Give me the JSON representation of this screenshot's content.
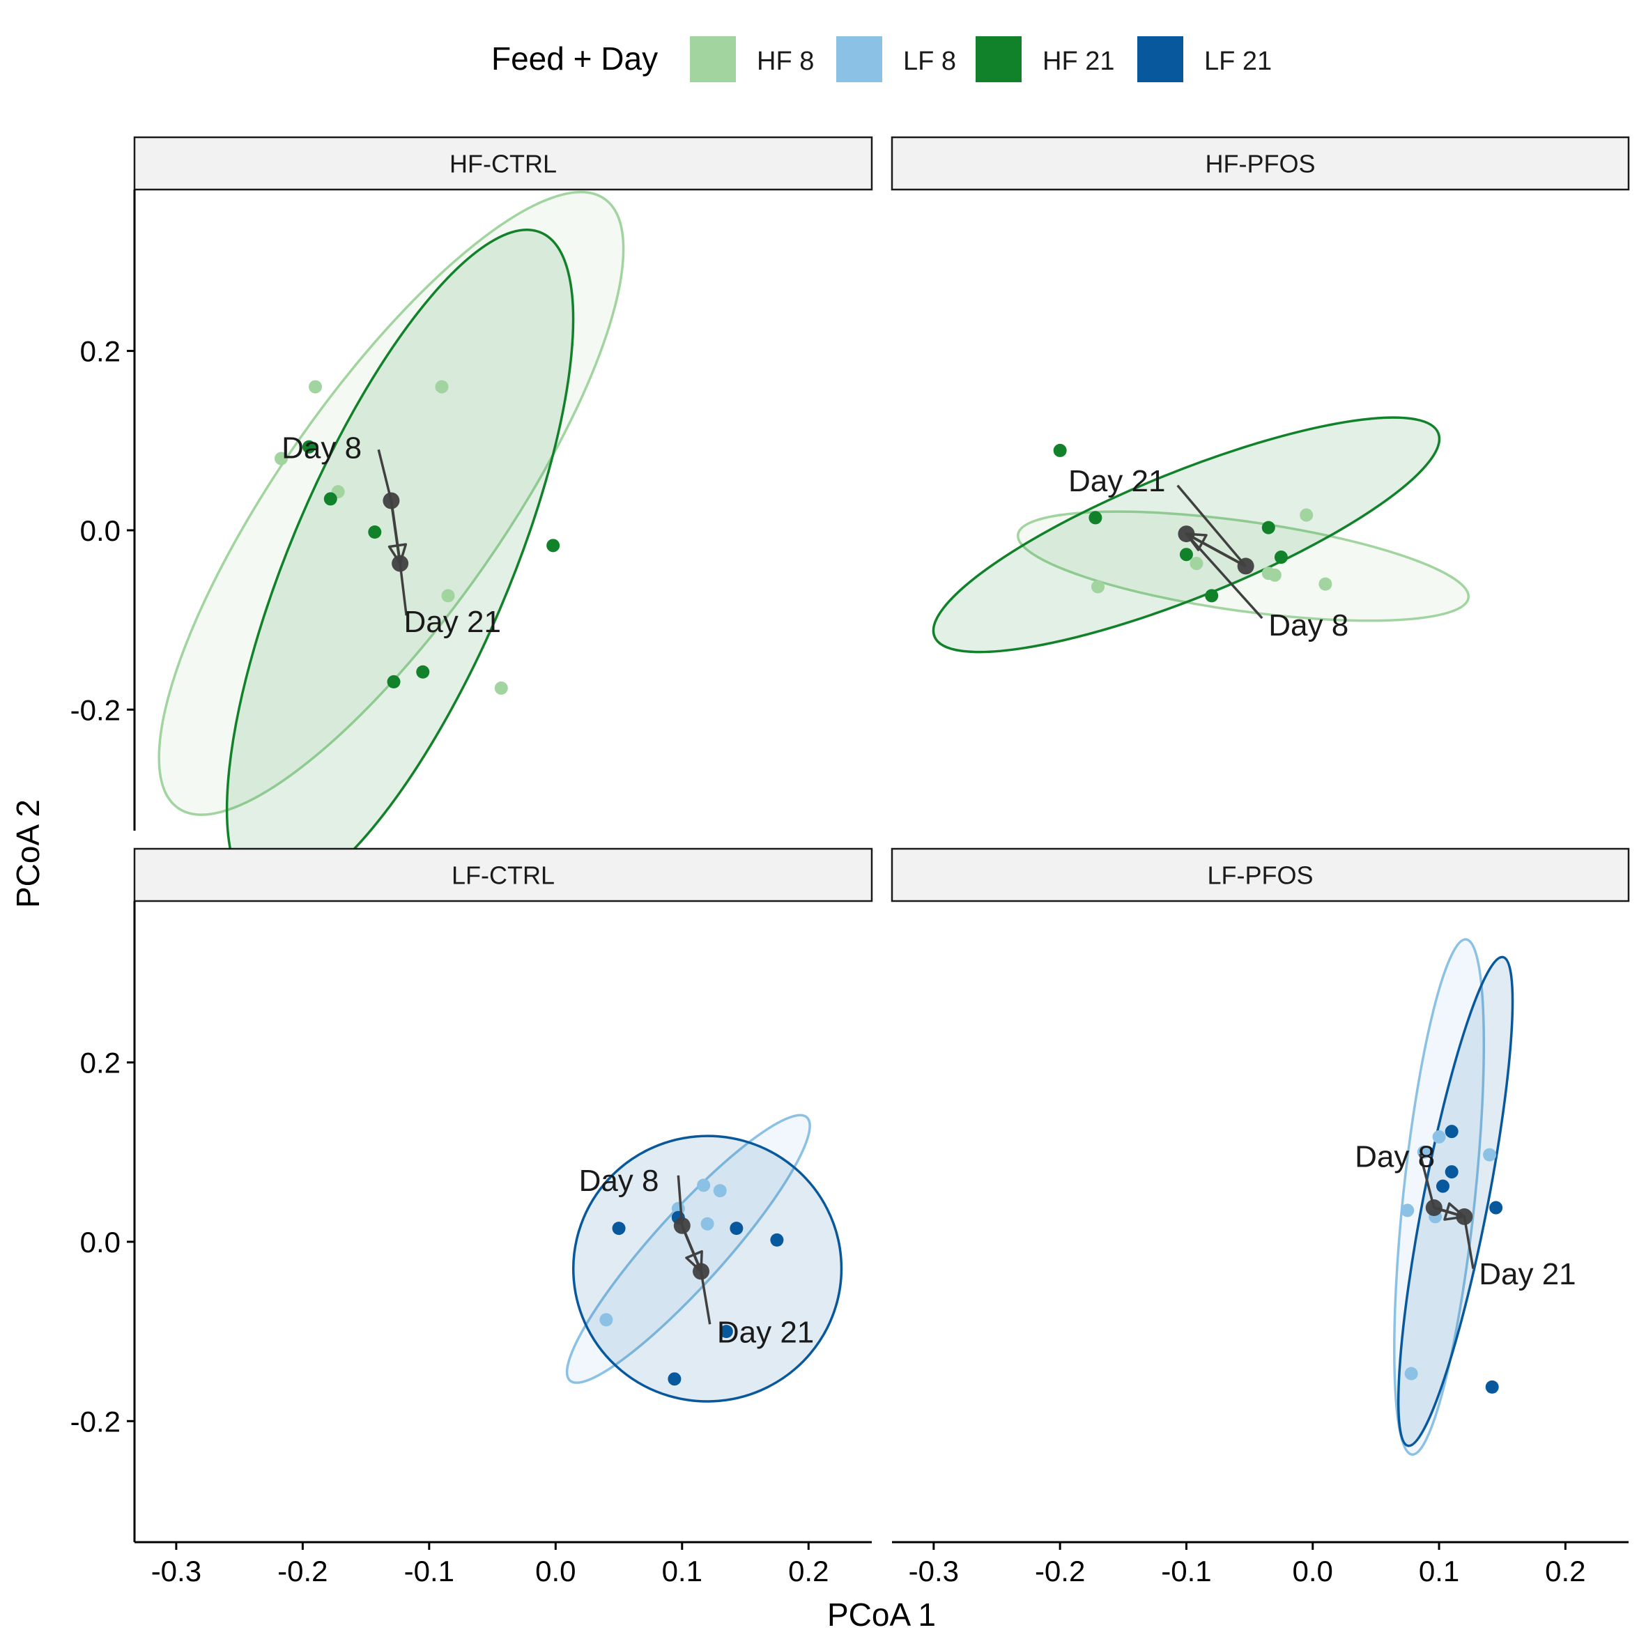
{
  "colors": {
    "HF 8": "#a1d49f",
    "LF 8": "#8bc1e4",
    "HF 21": "#11812a",
    "LF 21": "#08589d",
    "centroid": "#404040"
  },
  "chart_data": {
    "type": "scatter",
    "legend": {
      "title": "Feed + Day",
      "placement": "top",
      "items": [
        "HF 8",
        "LF 8",
        "HF 21",
        "LF 21"
      ]
    },
    "xlabel": "PCoA 1",
    "ylabel": "PCoA 2",
    "xlim": [
      -0.333,
      0.25
    ],
    "ylim": [
      -0.335,
      0.38
    ],
    "xticks": [
      -0.3,
      -0.2,
      -0.1,
      0.0,
      0.1,
      0.2
    ],
    "xtick_labels": [
      "-0.3",
      "-0.2",
      "-0.1",
      "0.0",
      "0.1",
      "0.2"
    ],
    "yticks": [
      -0.2,
      0.0,
      0.2
    ],
    "ytick_labels": [
      "-0.2",
      "0.0",
      "0.2"
    ],
    "grid": false,
    "panels": [
      {
        "title": "HF-CTRL",
        "groups": [
          {
            "name": "HF 8",
            "points": [
              [
                -0.19,
                0.16
              ],
              [
                -0.09,
                0.16
              ],
              [
                -0.217,
                0.08
              ],
              [
                -0.172,
                0.043
              ],
              [
                -0.085,
                -0.073
              ],
              [
                -0.043,
                -0.176
              ]
            ],
            "ellipse": {
              "cx": -0.13,
              "cy": 0.03,
              "rx": 0.294,
              "ry": 0.125,
              "angle_deg": -55
            }
          },
          {
            "name": "HF 21",
            "points": [
              [
                -0.195,
                0.093
              ],
              [
                -0.178,
                0.035
              ],
              [
                -0.143,
                -0.002
              ],
              [
                -0.002,
                -0.017
              ],
              [
                -0.105,
                -0.158
              ],
              [
                -0.128,
                -0.169
              ]
            ],
            "ellipse": {
              "cx": -0.123,
              "cy": -0.038,
              "rx": 0.285,
              "ry": 0.122,
              "angle_deg": -67
            }
          }
        ],
        "centroids": {
          "from": [
            -0.13,
            0.033
          ],
          "to": [
            -0.123,
            -0.037
          ]
        },
        "annotations": [
          {
            "text": "Day 8",
            "x": -0.185,
            "y": 0.093,
            "anchor": [
              -0.14,
              0.09
            ],
            "align": "middle"
          },
          {
            "text": "Day 21",
            "x": -0.12,
            "y": -0.101,
            "anchor": [
              -0.118,
              -0.095
            ],
            "align": "start"
          }
        ]
      },
      {
        "title": "HF-PFOS",
        "groups": [
          {
            "name": "HF 8",
            "points": [
              [
                -0.17,
                -0.063
              ],
              [
                -0.092,
                -0.037
              ],
              [
                -0.035,
                -0.048
              ],
              [
                -0.03,
                -0.05
              ],
              [
                -0.005,
                0.017
              ],
              [
                0.01,
                -0.06
              ]
            ],
            "ellipse": {
              "cx": -0.055,
              "cy": -0.04,
              "rx": 0.18,
              "ry": 0.05,
              "angle_deg": 8
            }
          },
          {
            "name": "HF 21",
            "points": [
              [
                -0.2,
                0.089
              ],
              [
                -0.172,
                0.014
              ],
              [
                -0.035,
                0.003
              ],
              [
                -0.1,
                -0.027
              ],
              [
                -0.025,
                -0.03
              ],
              [
                -0.08,
                -0.073
              ]
            ],
            "ellipse": {
              "cx": -0.1,
              "cy": -0.005,
              "rx": 0.215,
              "ry": 0.07,
              "angle_deg": -22
            }
          }
        ],
        "centroids": {
          "from": [
            -0.053,
            -0.04
          ],
          "to": [
            -0.1,
            -0.004
          ]
        },
        "annotations": [
          {
            "text": "Day 21",
            "x": -0.155,
            "y": 0.056,
            "anchor": [
              -0.107,
              0.05
            ],
            "align": "middle"
          },
          {
            "text": "Day 8",
            "x": -0.035,
            "y": -0.105,
            "anchor": [
              -0.04,
              -0.098
            ],
            "align": "start"
          }
        ]
      },
      {
        "title": "LF-CTRL",
        "groups": [
          {
            "name": "LF 8",
            "points": [
              [
                0.097,
                0.037
              ],
              [
                0.117,
                0.063
              ],
              [
                0.13,
                0.057
              ],
              [
                0.12,
                0.02
              ],
              [
                0.04,
                -0.087
              ]
            ],
            "ellipse": {
              "cx": 0.105,
              "cy": -0.008,
              "rx": 0.14,
              "ry": 0.04,
              "angle_deg": -48
            }
          },
          {
            "name": "LF 21",
            "points": [
              [
                0.05,
                0.015
              ],
              [
                0.097,
                0.027
              ],
              [
                0.143,
                0.015
              ],
              [
                0.175,
                0.002
              ],
              [
                0.135,
                -0.1
              ],
              [
                0.094,
                -0.153
              ]
            ],
            "ellipse": {
              "cx": 0.12,
              "cy": -0.03,
              "rx": 0.106,
              "ry": 0.148,
              "angle_deg": -5
            }
          }
        ],
        "centroids": {
          "from": [
            0.1,
            0.018
          ],
          "to": [
            0.115,
            -0.033
          ]
        },
        "annotations": [
          {
            "text": "Day 8",
            "x": 0.05,
            "y": 0.069,
            "anchor": [
              0.097,
              0.074
            ],
            "align": "middle"
          },
          {
            "text": "Day 21",
            "x": 0.166,
            "y": -0.1,
            "anchor": [
              0.122,
              -0.092
            ],
            "align": "middle"
          }
        ]
      },
      {
        "title": "LF-PFOS",
        "groups": [
          {
            "name": "LF 8",
            "points": [
              [
                0.088,
                0.1
              ],
              [
                0.1,
                0.117
              ],
              [
                0.14,
                0.097
              ],
              [
                0.075,
                0.035
              ],
              [
                0.097,
                0.028
              ],
              [
                0.078,
                -0.147
              ]
            ],
            "ellipse": {
              "cx": 0.1,
              "cy": 0.05,
              "rx": 0.205,
              "ry": 0.04,
              "angle_deg": -84
            }
          },
          {
            "name": "LF 21",
            "points": [
              [
                0.11,
                0.123
              ],
              [
                0.11,
                0.078
              ],
              [
                0.103,
                0.062
              ],
              [
                0.145,
                0.038
              ],
              [
                0.142,
                -0.162
              ]
            ],
            "ellipse": {
              "cx": 0.113,
              "cy": 0.045,
              "rx": 0.197,
              "ry": 0.036,
              "angle_deg": -79
            }
          }
        ],
        "centroids": {
          "from": [
            0.096,
            0.038
          ],
          "to": [
            0.12,
            0.028
          ]
        },
        "annotations": [
          {
            "text": "Day 8",
            "x": 0.065,
            "y": 0.096,
            "anchor": [
              0.085,
              0.098
            ],
            "align": "middle"
          },
          {
            "text": "Day 21",
            "x": 0.17,
            "y": -0.035,
            "anchor": [
              0.127,
              -0.03
            ],
            "align": "middle"
          }
        ]
      }
    ]
  }
}
